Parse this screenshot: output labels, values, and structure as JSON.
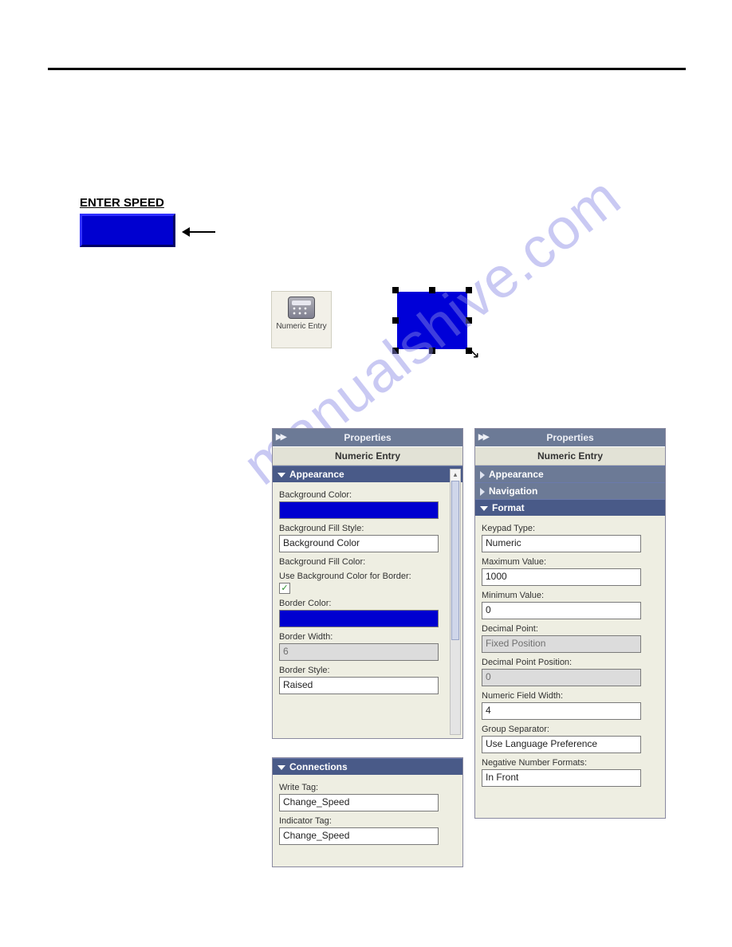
{
  "page": {
    "rule_color": "#000000"
  },
  "enter_speed": {
    "label": "ENTER SPEED",
    "box_bg": "#0000d0",
    "box_border_light": "#3030ff",
    "box_border_dark": "#000066"
  },
  "toolbox": {
    "numeric_entry_label": "Numeric Entry"
  },
  "selected_object": {
    "fill_color": "#0000d8",
    "handle_color": "#000000"
  },
  "properties_panel_left": {
    "title": "Properties",
    "subtitle": "Numeric Entry",
    "sections": {
      "appearance": {
        "header": "Appearance",
        "background_color_label": "Background Color:",
        "background_color_value": "#0000d0",
        "background_fill_style_label": "Background Fill Style:",
        "background_fill_style_value": "Background Color",
        "background_fill_color_label": "Background Fill Color:",
        "use_bg_for_border_label": "Use Background Color for Border:",
        "use_bg_for_border_checked": true,
        "border_color_label": "Border Color:",
        "border_color_value": "#0000d0",
        "border_width_label": "Border Width:",
        "border_width_value": "6",
        "border_style_label": "Border Style:",
        "border_style_value": "Raised"
      },
      "connections": {
        "header": "Connections",
        "write_tag_label": "Write Tag:",
        "write_tag_value": "Change_Speed",
        "indicator_tag_label": "Indicator Tag:",
        "indicator_tag_value": "Change_Speed"
      }
    }
  },
  "properties_panel_right": {
    "title": "Properties",
    "subtitle": "Numeric Entry",
    "sections": {
      "appearance_header": "Appearance",
      "navigation_header": "Navigation",
      "format": {
        "header": "Format",
        "keypad_type_label": "Keypad Type:",
        "keypad_type_value": "Numeric",
        "max_value_label": "Maximum Value:",
        "max_value_value": "1000",
        "min_value_label": "Minimum Value:",
        "min_value_value": "0",
        "decimal_point_label": "Decimal Point:",
        "decimal_point_value": "Fixed Position",
        "decimal_point_pos_label": "Decimal Point Position:",
        "decimal_point_pos_value": "0",
        "numeric_field_width_label": "Numeric Field Width:",
        "numeric_field_width_value": "4",
        "group_separator_label": "Group Separator:",
        "group_separator_value": "Use Language Preference",
        "neg_number_label": "Negative Number Formats:",
        "neg_number_value": "In Front"
      }
    }
  },
  "watermark": "manualshive.com",
  "colors": {
    "panel_bg": "#eeeee2",
    "titlebar_bg": "#6c7a96",
    "section_bg": "#495a88",
    "section_collapsed_bg": "#6c7a96",
    "input_border": "#7a7a7a",
    "disabled_bg": "#dcdcdc"
  }
}
